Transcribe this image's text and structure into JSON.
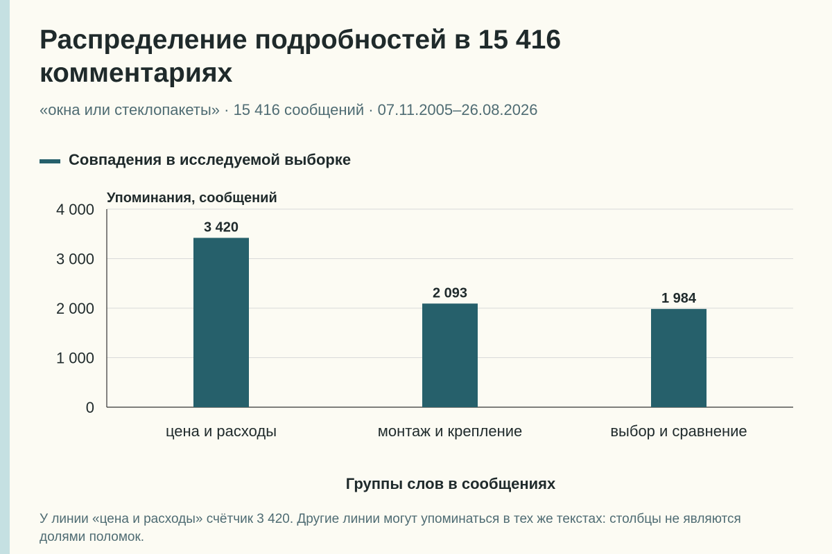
{
  "title": "Распределение подробностей в 15 416 комментариях",
  "subtitle": "«окна или стеклопакеты» · 15 416 сообщений · 07.11.2005–26.08.2026",
  "footnote": "У линии «цена и расходы» счётчик 3 420. Другие линии могут упоминаться в тех же текстах: столбцы не являются долями поломок.",
  "colors": {
    "background": "#fcfbf3",
    "bar": "#26606b",
    "text": "#1f2a2b",
    "muted": "#4f6c73",
    "grid": "#d9d9d9",
    "accent_strip": "#c5e0e2"
  },
  "chart_data": {
    "type": "bar",
    "categories": [
      "цена и расходы",
      "монтаж и крепление",
      "выбор и сравнение"
    ],
    "series": [
      {
        "name": "Совпадения в исследуемой выборке",
        "values": [
          3420,
          2093,
          1984
        ],
        "labels": [
          "3 420",
          "2 093",
          "1 984"
        ]
      }
    ],
    "ylabel": "Упоминания, сообщений",
    "xlabel": "Группы слов в сообщениях",
    "ylim": [
      0,
      4000
    ],
    "yticks": [
      0,
      1000,
      2000,
      3000,
      4000
    ],
    "ytick_labels": [
      "0",
      "1 000",
      "2 000",
      "3 000",
      "4 000"
    ],
    "grid": true,
    "legend_position": "top-left"
  }
}
